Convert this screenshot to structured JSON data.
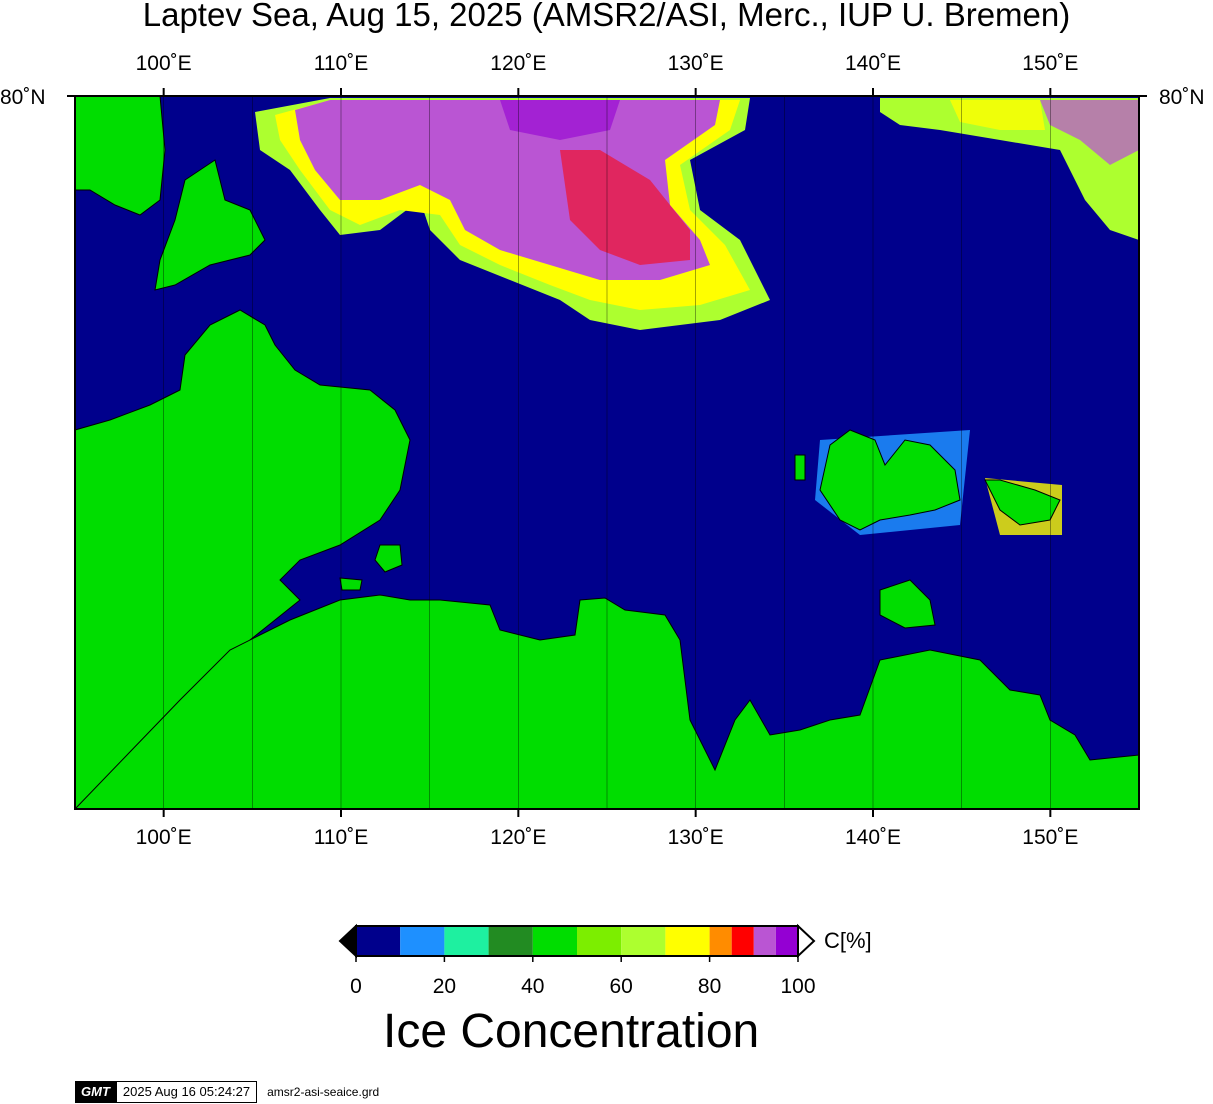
{
  "title": "Laptev Sea, Aug 15, 2025 (AMSR2/ASI, Merc., IUP U. Bremen)",
  "map": {
    "lon_ticks": [
      "100˚E",
      "110˚E",
      "120˚E",
      "130˚E",
      "140˚E",
      "150˚E"
    ],
    "lat_label_left": "80˚N",
    "lat_label_right": "80˚N",
    "lon_range": [
      95,
      155
    ],
    "colors": {
      "water": "#00008c",
      "land": "#00dd00"
    }
  },
  "colorbar": {
    "title": "Ice Concentration",
    "unit": "C[%]",
    "tick_labels": [
      "0",
      "20",
      "40",
      "60",
      "80",
      "100"
    ],
    "bins": [
      {
        "range": [
          0,
          10
        ],
        "color": "#00008c"
      },
      {
        "range": [
          10,
          20
        ],
        "color": "#1e90ff"
      },
      {
        "range": [
          20,
          30
        ],
        "color": "#1ef0a0"
      },
      {
        "range": [
          30,
          40
        ],
        "color": "#228b22"
      },
      {
        "range": [
          40,
          50
        ],
        "color": "#00dd00"
      },
      {
        "range": [
          50,
          60
        ],
        "color": "#7cee00"
      },
      {
        "range": [
          60,
          70
        ],
        "color": "#adff2f"
      },
      {
        "range": [
          70,
          80
        ],
        "color": "#ffff00"
      },
      {
        "range": [
          80,
          85
        ],
        "color": "#ff8c00"
      },
      {
        "range": [
          85,
          90
        ],
        "color": "#ff0000"
      },
      {
        "range": [
          90,
          95
        ],
        "color": "#ba55d3"
      },
      {
        "range": [
          95,
          100
        ],
        "color": "#9400d3"
      }
    ]
  },
  "footer": {
    "logo": "GMT",
    "timestamp": "2025 Aug 16 05:24:27",
    "filename": "amsr2-asi-seaice.grd"
  }
}
